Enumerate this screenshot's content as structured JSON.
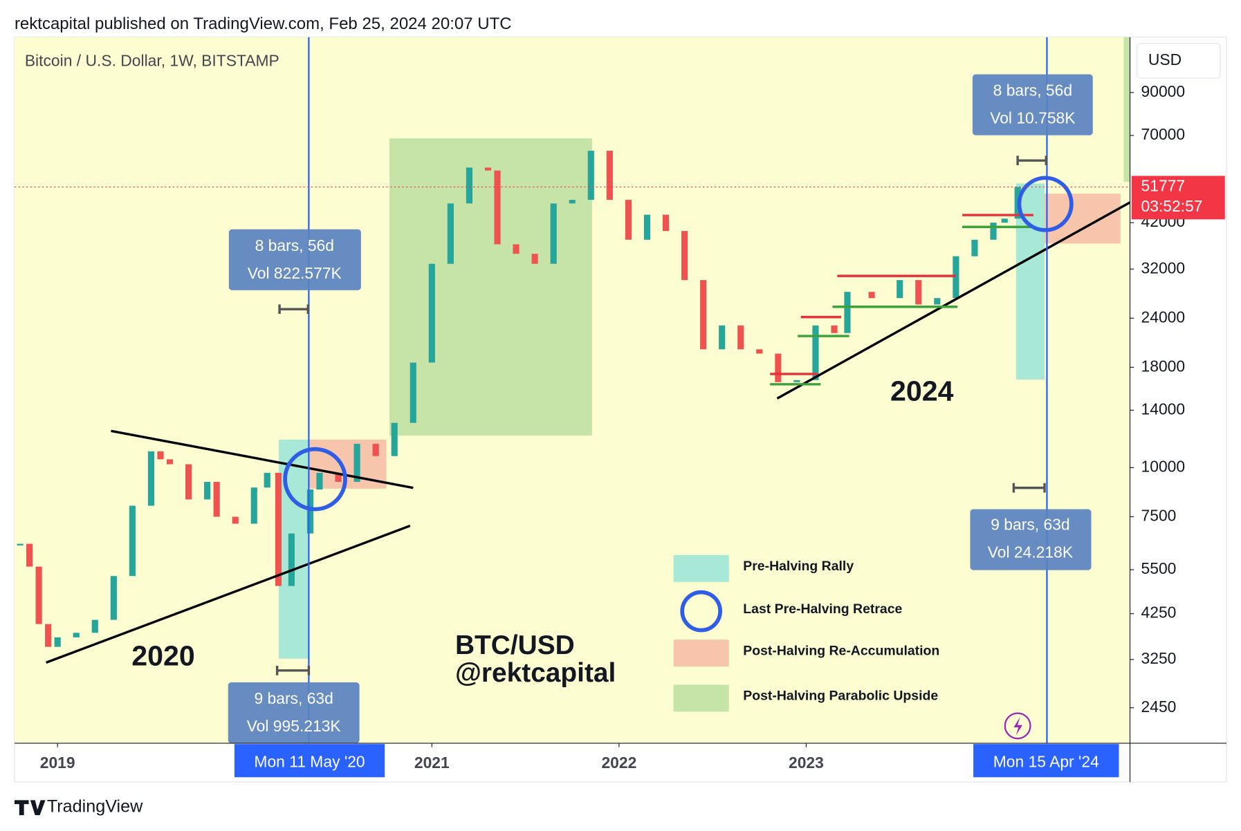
{
  "header": "rektcapital published on TradingView.com, Feb 25, 2024 20:07 UTC",
  "footer": "TradingView",
  "chart_data": {
    "type": "candlestick",
    "title": "Bitcoin / U.S. Dollar, 1W, BITSTAMP",
    "currency": "USD",
    "log_scale": true,
    "x": [
      2018.8,
      2018.85,
      2018.9,
      2018.95,
      2019.0,
      2019.1,
      2019.2,
      2019.3,
      2019.4,
      2019.5,
      2019.55,
      2019.6,
      2019.7,
      2019.8,
      2019.85,
      2019.95,
      2020.05,
      2020.12,
      2020.18,
      2020.25,
      2020.35,
      2020.4,
      2020.5,
      2020.6,
      2020.7,
      2020.8,
      2020.9,
      2021.0,
      2021.1,
      2021.2,
      2021.3,
      2021.35,
      2021.45,
      2021.55,
      2021.65,
      2021.75,
      2021.85,
      2021.95,
      2022.05,
      2022.15,
      2022.25,
      2022.35,
      2022.45,
      2022.55,
      2022.65,
      2022.75,
      2022.85,
      2022.95,
      2023.05,
      2023.15,
      2023.22,
      2023.35,
      2023.5,
      2023.6,
      2023.7,
      2023.8,
      2023.9,
      2024.0,
      2024.06,
      2024.13
    ],
    "values": [
      6400,
      5600,
      4000,
      3500,
      3700,
      3800,
      4100,
      5300,
      8000,
      11000,
      10500,
      10200,
      8300,
      9200,
      7500,
      7200,
      8900,
      9700,
      5000,
      6800,
      8800,
      9700,
      9200,
      11500,
      10700,
      13000,
      18500,
      33000,
      47000,
      58000,
      57000,
      37000,
      35000,
      33000,
      47000,
      48000,
      64000,
      48000,
      38000,
      44000,
      40000,
      30000,
      20000,
      23000,
      20000,
      19500,
      16500,
      16700,
      23000,
      22000,
      28000,
      27000,
      30000,
      26000,
      27000,
      34500,
      38000,
      42000,
      43000,
      51777
    ],
    "up_color": "#26a69a",
    "down_color": "#ef5350",
    "xlim": [
      2018.77,
      2024.73
    ],
    "xticks": [
      2019,
      2021,
      2022,
      2023
    ],
    "ylim": [
      1990,
      124500
    ],
    "yticks": [
      90000,
      70000,
      42000,
      32000,
      24000,
      18000,
      14000,
      10000,
      7500,
      5500,
      4250,
      3250,
      2450
    ],
    "last_price": 51777,
    "countdown": "03:52:57",
    "annotations": {
      "label_2020": "2020",
      "label_2024": "2024",
      "watermark_1": "BTC/USD",
      "watermark_2": "@rektcapital",
      "box1_a": "8 bars, 56d",
      "box1_b": "Vol 822.577K",
      "box2_a": "9 bars, 63d",
      "box2_b": "Vol 995.213K",
      "box3_a": "8 bars, 56d",
      "box3_b": "Vol 10.758K",
      "box4_a": "9 bars, 63d",
      "box4_b": "Vol 24.218K",
      "date_1": "Mon 11 May '20",
      "date_2": "Mon 15 Apr '24"
    },
    "legend_items": [
      {
        "name": "Pre-Halving Rally",
        "color": "#a8e8d6"
      },
      {
        "name": "Last Pre-Halving Retrace",
        "color": "#2f5de6"
      },
      {
        "name": "Post-Halving Re-Accumulation",
        "color": "#f7c4ac"
      },
      {
        "name": "Post-Halving Parabolic Upside",
        "color": "#c6e3a8"
      }
    ]
  }
}
